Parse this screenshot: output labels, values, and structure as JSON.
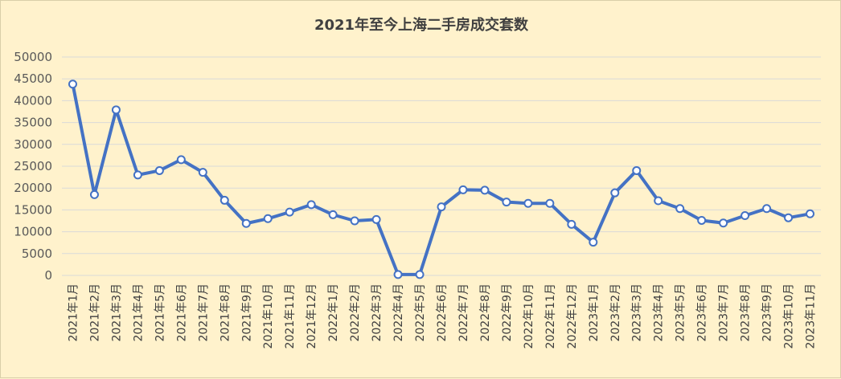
{
  "chart_data": {
    "type": "line",
    "title": "2021年至今上海二手房成交套数",
    "xlabel": "",
    "ylabel": "",
    "ylim": [
      0,
      50000
    ],
    "yticks": [
      0,
      5000,
      10000,
      15000,
      20000,
      25000,
      30000,
      35000,
      40000,
      45000,
      50000
    ],
    "grid": true,
    "legend": "none",
    "line_color": "#4472c4",
    "marker_fill": "#ffffff",
    "categories": [
      "2021年1月",
      "2021年2月",
      "2021年3月",
      "2021年4月",
      "2021年5月",
      "2021年6月",
      "2021年7月",
      "2021年8月",
      "2021年9月",
      "2021年10月",
      "2021年11月",
      "2021年12月",
      "2022年1月",
      "2022年2月",
      "2022年3月",
      "2022年4月",
      "2022年5月",
      "2022年6月",
      "2022年7月",
      "2022年8月",
      "2022年9月",
      "2022年10月",
      "2022年11月",
      "2022年12月",
      "2023年1月",
      "2023年2月",
      "2023年3月",
      "2023年4月",
      "2023年5月",
      "2023年6月",
      "2023年7月",
      "2023年8月",
      "2023年9月",
      "2023年10月",
      "2023年11月"
    ],
    "values": [
      43800,
      18500,
      37900,
      23000,
      24000,
      26500,
      23600,
      17200,
      11900,
      13000,
      14500,
      16200,
      13900,
      12500,
      12800,
      200,
      200,
      15700,
      19600,
      19500,
      16800,
      16500,
      16500,
      11700,
      7600,
      18900,
      24000,
      17100,
      15300,
      12600,
      12000,
      13700,
      15300,
      13200,
      14100
    ]
  }
}
